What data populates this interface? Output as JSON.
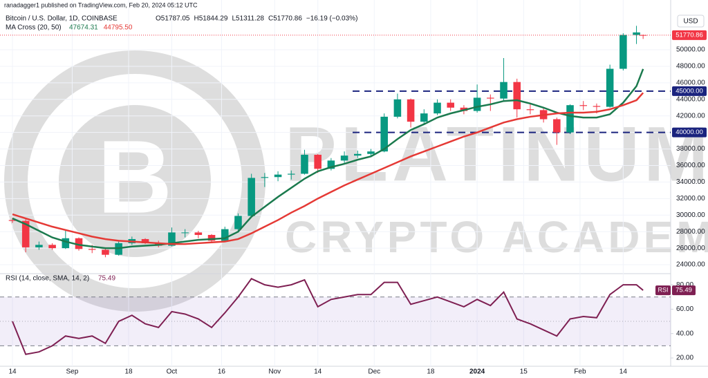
{
  "header": {
    "publisher": "ranadagger1 published on TradingView.com, Feb 20, 2024 05:12 UTC",
    "symbol": "Bitcoin / U.S. Dollar, 1D, COINBASE",
    "ohlc": [
      "O51787.05",
      "H51844.29",
      "L51311.28",
      "C51770.86",
      "−16.19 (−0.03%)"
    ],
    "currency": "USD"
  },
  "watermark": [
    "PLATINUM",
    "CRYPTO ACADEMY"
  ],
  "chart_data": [
    {
      "type": "candlestick",
      "title": "MA Cross (20, 50)",
      "x": [
        0,
        4,
        8,
        12,
        16,
        20,
        24,
        28,
        32,
        36,
        40,
        44,
        48,
        52,
        56,
        60,
        64,
        68,
        72,
        76,
        80,
        84,
        88,
        92,
        96,
        100,
        104,
        108,
        112,
        116,
        120,
        124,
        128,
        132,
        136,
        140,
        144,
        148,
        152,
        156,
        160,
        164,
        168,
        172,
        176,
        180,
        184,
        188,
        190
      ],
      "open": [
        29400,
        29300,
        26100,
        26400,
        26000,
        27200,
        25900,
        25800,
        25200,
        26600,
        27100,
        26600,
        26300,
        27900,
        27900,
        27600,
        26900,
        28300,
        29900,
        34500,
        34600,
        34900,
        35000,
        37300,
        35600,
        36600,
        37200,
        37400,
        37700,
        41900,
        44000,
        41300,
        42300,
        43600,
        43000,
        42600,
        44200,
        44100,
        46100,
        42800,
        42700,
        41600,
        40000,
        43300,
        43200,
        43100,
        47700,
        51800,
        51787.05
      ],
      "high": [
        29650,
        29500,
        26800,
        26600,
        28100,
        27300,
        26400,
        26100,
        26800,
        27400,
        27200,
        26900,
        28500,
        28300,
        28100,
        27700,
        28600,
        30200,
        35000,
        35100,
        35300,
        35400,
        37900,
        37400,
        36900,
        37700,
        37800,
        38000,
        42300,
        44700,
        44100,
        42800,
        44000,
        44000,
        43300,
        45800,
        44600,
        49000,
        46500,
        43500,
        42900,
        41800,
        43400,
        43800,
        43500,
        48200,
        52000,
        52900,
        51844.29
      ],
      "low": [
        29050,
        25500,
        25800,
        25800,
        25900,
        25700,
        25400,
        24900,
        25100,
        26400,
        26500,
        26100,
        26200,
        27300,
        27200,
        26600,
        26800,
        28100,
        29800,
        33400,
        34100,
        34300,
        34900,
        35100,
        35400,
        36300,
        36900,
        37200,
        37600,
        41700,
        40600,
        40900,
        42100,
        42600,
        42200,
        42400,
        42600,
        43900,
        41800,
        42200,
        41200,
        38500,
        39800,
        42700,
        42300,
        43000,
        47500,
        50700,
        51311.28
      ],
      "close": [
        29300,
        26100,
        26400,
        26000,
        27200,
        25900,
        25800,
        25200,
        26600,
        27100,
        26600,
        26300,
        27900,
        27900,
        27600,
        26900,
        28300,
        29900,
        34500,
        34600,
        34900,
        35000,
        37300,
        35600,
        36600,
        37200,
        37400,
        37700,
        41900,
        44000,
        41300,
        42300,
        43600,
        43000,
        42600,
        44200,
        44100,
        46100,
        42800,
        42700,
        41600,
        40000,
        43300,
        43200,
        43100,
        47700,
        51800,
        52100,
        51770.86
      ],
      "up_color": "#089981",
      "down_color": "#f23645",
      "series": [
        {
          "color": "#1b7a4e",
          "legend_label": "47674.31",
          "values": [
            29600,
            28900,
            28100,
            27300,
            26800,
            26400,
            26200,
            26000,
            26000,
            26200,
            26300,
            26400,
            26600,
            26800,
            27000,
            27100,
            27200,
            28000,
            29800,
            31000,
            32200,
            33300,
            34400,
            35300,
            35800,
            36200,
            36700,
            37100,
            38000,
            39200,
            40300,
            41000,
            41800,
            42300,
            42700,
            43100,
            43400,
            43800,
            43900,
            43500,
            43000,
            42400,
            42000,
            41800,
            41800,
            42200,
            43600,
            45600,
            47674.31
          ]
        },
        {
          "color": "#e53935",
          "legend_label": "44795.50",
          "values": [
            30100,
            29600,
            29100,
            28600,
            28200,
            27800,
            27400,
            27100,
            26900,
            26800,
            26700,
            26600,
            26500,
            26500,
            26600,
            26700,
            26800,
            27100,
            27800,
            28600,
            29400,
            30300,
            31100,
            32000,
            32800,
            33600,
            34300,
            35000,
            35700,
            36400,
            37100,
            37700,
            38300,
            38900,
            39500,
            40000,
            40600,
            41200,
            41600,
            41900,
            42100,
            42300,
            42400,
            42400,
            42500,
            42800,
            43300,
            43900,
            44795.5
          ]
        }
      ],
      "last_label": "51770.86",
      "levels": [
        {
          "value": 45000,
          "label": "45000.00"
        },
        {
          "value": 40000,
          "label": "40000.00"
        }
      ],
      "level_color": "#1a237e",
      "xlim": [
        -3.75,
        198.3
      ],
      "xticks": [
        {
          "value": 0,
          "label": "14"
        },
        {
          "value": 18,
          "label": "Sep"
        },
        {
          "value": 35,
          "label": "18"
        },
        {
          "value": 48,
          "label": "Oct"
        },
        {
          "value": 63,
          "label": "16"
        },
        {
          "value": 79,
          "label": "Nov"
        },
        {
          "value": 92,
          "label": "14"
        },
        {
          "value": 109,
          "label": "Dec"
        },
        {
          "value": 126,
          "label": "18"
        },
        {
          "value": 140,
          "label": "2024"
        },
        {
          "value": 154,
          "label": "15"
        },
        {
          "value": 171,
          "label": "Feb"
        },
        {
          "value": 184,
          "label": "14"
        }
      ],
      "ylim": [
        23000,
        54350
      ],
      "yticks": [
        {
          "value": 24000,
          "label": "24000.00"
        },
        {
          "value": 26000,
          "label": "26000.00"
        },
        {
          "value": 28000,
          "label": "28000.00"
        },
        {
          "value": 30000,
          "label": "30000.00"
        },
        {
          "value": 32000,
          "label": "32000.00"
        },
        {
          "value": 34000,
          "label": "34000.00"
        },
        {
          "value": 36000,
          "label": "36000.00"
        },
        {
          "value": 38000,
          "label": "38000.00"
        },
        {
          "value": 40000,
          "label": "40000.00"
        },
        {
          "value": 42000,
          "label": "42000.00"
        },
        {
          "value": 44000,
          "label": "44000.00"
        },
        {
          "value": 46000,
          "label": "46000.00"
        },
        {
          "value": 48000,
          "label": "48000.00"
        },
        {
          "value": 50000,
          "label": "50000.00"
        }
      ]
    },
    {
      "type": "line",
      "title": "RSI (14, close, SMA, 14, 2)",
      "x": [
        0,
        4,
        8,
        12,
        16,
        20,
        24,
        28,
        32,
        36,
        40,
        44,
        48,
        52,
        56,
        60,
        64,
        68,
        72,
        76,
        80,
        84,
        88,
        92,
        96,
        100,
        104,
        108,
        112,
        116,
        120,
        124,
        128,
        132,
        136,
        140,
        144,
        148,
        152,
        156,
        160,
        164,
        168,
        172,
        176,
        180,
        184,
        188,
        190
      ],
      "series": [
        {
          "name": "RSI",
          "color": "#7e1f52",
          "value_label": "75.49",
          "values": [
            50,
            23,
            25,
            30,
            38,
            36,
            38,
            32,
            50,
            55,
            48,
            45,
            58,
            56,
            52,
            45,
            57,
            70,
            85,
            80,
            78,
            80,
            84,
            62,
            68,
            70,
            72,
            72,
            82,
            82,
            64,
            67,
            70,
            66,
            62,
            68,
            63,
            74,
            52,
            48,
            43,
            38,
            52,
            54,
            53,
            72,
            80,
            80,
            75.49
          ]
        }
      ],
      "band": [
        30,
        70
      ],
      "mid": 50,
      "band_color": "#7e57c2",
      "xlim": [
        -3.75,
        198.3
      ],
      "ylim": [
        13.2,
        88
      ],
      "yticks": [
        {
          "value": 20,
          "label": "20.00"
        },
        {
          "value": 40,
          "label": "40.00"
        },
        {
          "value": 60,
          "label": "60.00"
        },
        {
          "value": 80,
          "label": "80.00"
        }
      ]
    }
  ]
}
